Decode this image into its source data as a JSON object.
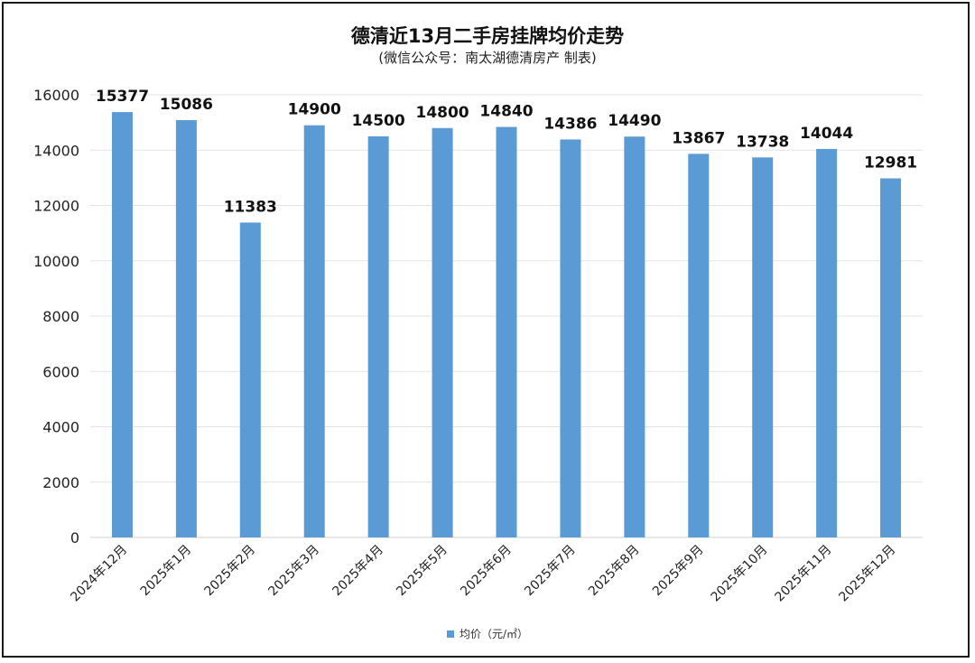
{
  "chart_data": {
    "type": "bar",
    "title": "德清近13月二手房挂牌均价走势",
    "subtitle": "(微信公众号：南太湖德清房产 制表)",
    "categories": [
      "2024年12月",
      "2025年1月",
      "2025年2月",
      "2025年3月",
      "2025年4月",
      "2025年5月",
      "2025年6月",
      "2025年7月",
      "2025年8月",
      "2025年9月",
      "2025年10月",
      "2025年11月",
      "2025年12月"
    ],
    "series": [
      {
        "name": "均价（元/㎡）",
        "values": [
          15377,
          15086,
          11383,
          14900,
          14500,
          14800,
          14840,
          14386,
          14490,
          13867,
          13738,
          14044,
          12981
        ]
      }
    ],
    "ylim": [
      0,
      16000
    ],
    "yticks": [
      0,
      2000,
      4000,
      6000,
      8000,
      10000,
      12000,
      14000,
      16000
    ],
    "grid": true,
    "legend_position": "bottom",
    "bar_color": "#5b9bd5"
  }
}
